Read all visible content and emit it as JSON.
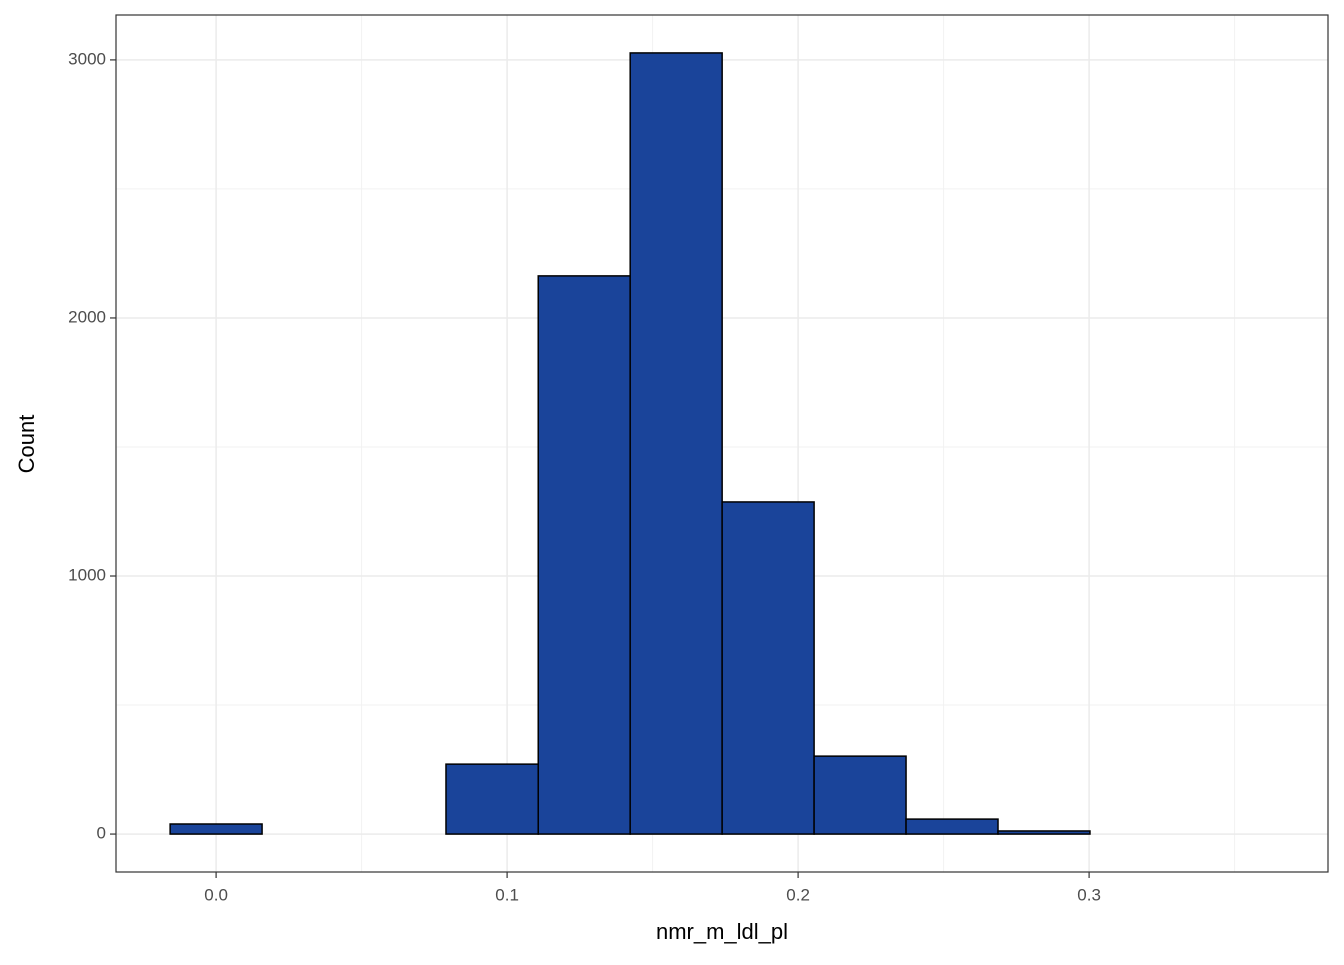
{
  "chart_data": {
    "type": "histogram",
    "x_label": "nmr_m_ldl_pl",
    "y_label": "Count",
    "bins": [
      -0.0158,
      0.0158,
      0.0474,
      0.079,
      0.1107,
      0.1423,
      0.1739,
      0.2055,
      0.2371,
      0.2687,
      0.3003,
      0.332,
      0.3636
    ],
    "values": [
      39,
      0,
      0,
      271,
      2163,
      3027,
      1287,
      302,
      58,
      12,
      0,
      0
    ],
    "color": "#1a449a",
    "edgecolor": "#000000",
    "xlim": [
      -0.0344,
      0.3821
    ],
    "ylim": [
      -147,
      3174
    ],
    "xticks": [
      {
        "value": 0,
        "label": "0.0"
      },
      0.1,
      0.2,
      0.3
    ],
    "yticks": [
      0,
      1000,
      2000,
      3000
    ],
    "grid": true
  }
}
